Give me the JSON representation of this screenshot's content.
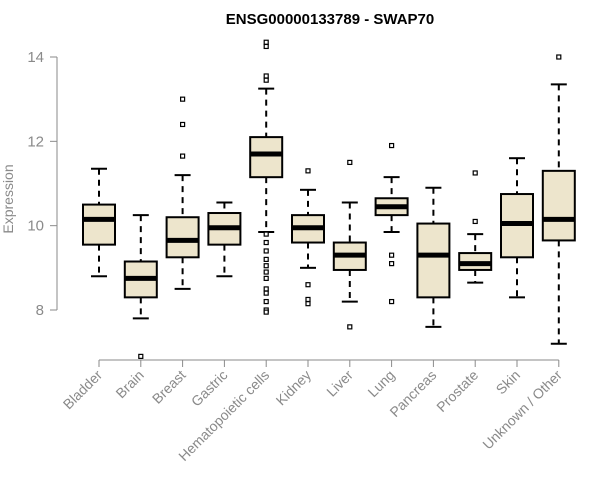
{
  "chart_data": {
    "type": "boxplot",
    "title": "ENSG00000133789 - SWAP70",
    "xlabel": "",
    "ylabel": "Expression",
    "ylim": [
      6.7,
      14.5
    ],
    "yticks": [
      "8",
      "10",
      "12",
      "14"
    ],
    "grid": false,
    "box_fill": "#ede5cc",
    "categories": [
      "Bladder",
      "Brain",
      "Breast",
      "Gastric",
      "Hematopoietic cells",
      "Kidney",
      "Liver",
      "Lung",
      "Pancreas",
      "Prostate",
      "Skin",
      "Unknown / Other"
    ],
    "series": [
      {
        "whisker_low": 8.8,
        "q1": 9.55,
        "median": 10.15,
        "q3": 10.5,
        "whisker_high": 11.35,
        "outliers": []
      },
      {
        "whisker_low": 7.8,
        "q1": 8.3,
        "median": 8.75,
        "q3": 9.15,
        "whisker_high": 10.25,
        "outliers": [
          6.9
        ]
      },
      {
        "whisker_low": 8.5,
        "q1": 9.25,
        "median": 9.65,
        "q3": 10.2,
        "whisker_high": 11.2,
        "outliers": [
          11.65,
          12.4,
          13.0
        ]
      },
      {
        "whisker_low": 8.8,
        "q1": 9.55,
        "median": 9.95,
        "q3": 10.3,
        "whisker_high": 10.55,
        "outliers": []
      },
      {
        "whisker_low": 9.85,
        "q1": 11.15,
        "median": 11.7,
        "q3": 12.1,
        "whisker_high": 13.25,
        "outliers": [
          13.45,
          13.55,
          14.25,
          14.35,
          9.8,
          9.6,
          9.4,
          9.2,
          9.05,
          8.9,
          8.75,
          8.5,
          8.4,
          8.2,
          8.0,
          7.95
        ]
      },
      {
        "whisker_low": 9.0,
        "q1": 9.6,
        "median": 9.95,
        "q3": 10.25,
        "whisker_high": 10.85,
        "outliers": [
          11.3,
          8.6,
          8.25,
          8.15
        ]
      },
      {
        "whisker_low": 8.2,
        "q1": 8.95,
        "median": 9.3,
        "q3": 9.6,
        "whisker_high": 10.55,
        "outliers": [
          11.5,
          7.6
        ]
      },
      {
        "whisker_low": 9.85,
        "q1": 10.25,
        "median": 10.45,
        "q3": 10.65,
        "whisker_high": 11.15,
        "outliers": [
          11.9,
          9.3,
          9.1,
          8.2
        ]
      },
      {
        "whisker_low": 7.6,
        "q1": 8.3,
        "median": 9.3,
        "q3": 10.05,
        "whisker_high": 10.9,
        "outliers": []
      },
      {
        "whisker_low": 8.65,
        "q1": 8.95,
        "median": 9.1,
        "q3": 9.35,
        "whisker_high": 9.8,
        "outliers": [
          10.1,
          11.25
        ]
      },
      {
        "whisker_low": 8.3,
        "q1": 9.25,
        "median": 10.05,
        "q3": 10.75,
        "whisker_high": 11.6,
        "outliers": []
      },
      {
        "whisker_low": 7.2,
        "q1": 9.65,
        "median": 10.15,
        "q3": 11.3,
        "whisker_high": 13.35,
        "outliers": [
          14.0
        ]
      }
    ]
  }
}
